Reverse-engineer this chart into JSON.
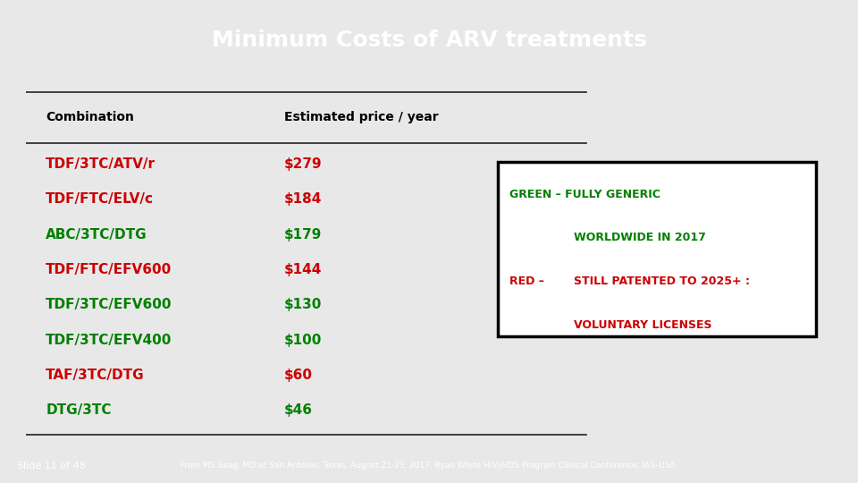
{
  "title": "Minimum Costs of ARV treatments",
  "title_bg": "#1a7ab5",
  "title_color": "#ffffff",
  "slide_bg": "#e8e8e8",
  "content_bg": "#ffffff",
  "combinations": [
    {
      "name": "TDF/3TC/ATV/r",
      "price": "$279",
      "color": "#cc0000"
    },
    {
      "name": "TDF/FTC/ELV/c",
      "price": "$184",
      "color": "#cc0000"
    },
    {
      "name": "ABC/3TC/DTG",
      "price": "$179",
      "color": "#008000"
    },
    {
      "name": "TDF/FTC/EFV600",
      "price": "$144",
      "color": "#cc0000"
    },
    {
      "name": "TDF/3TC/EFV600",
      "price": "$130",
      "color": "#008000"
    },
    {
      "name": "TDF/3TC/EFV400",
      "price": "$100",
      "color": "#008000"
    },
    {
      "name": "TAF/3TC/DTG",
      "price": "$60",
      "color": "#cc0000"
    },
    {
      "name": "DTG/3TC",
      "price": "$46",
      "color": "#008000"
    }
  ],
  "col_header_combination": "Combination",
  "col_header_price": "Estimated price / year",
  "legend_green1": "GREEN – FULLY GENERIC",
  "legend_green2": "WORLDWIDE IN 2017",
  "legend_red_prefix": "RED –",
  "legend_red1": "STILL PATENTED TO 2025+ :",
  "legend_red2": "VOLUNTARY LICENSES",
  "green_color": "#008000",
  "red_color": "#cc0000",
  "footer_left": "Slide 11 of 48",
  "footer_right": "From MS Saag, MD at San Antonio, Texas, August 21-23, 2017, Ryan White HIV/AIDS Program Clinical Conference, IAS–USA.",
  "footer_bg": "#1a7ab5",
  "footer_color": "#ffffff",
  "line_color": "#222222"
}
